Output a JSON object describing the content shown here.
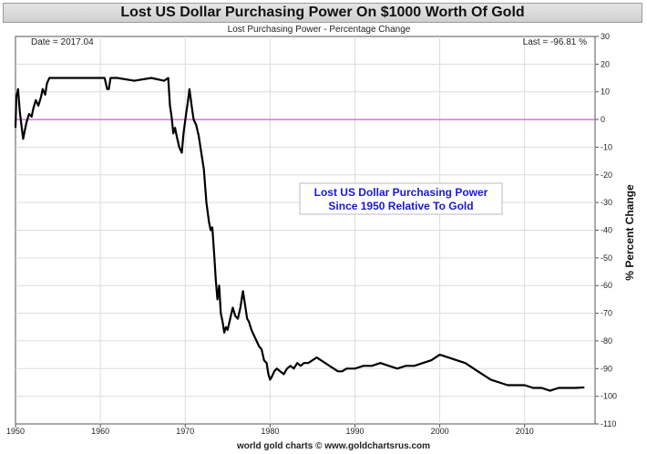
{
  "chart_data": {
    "type": "line",
    "title": "Lost US Dollar Purchasing Power On $1000 Worth Of Gold",
    "subtitle": "Lost Purchasing Power - Percentage Change",
    "date_label": "Date = 2017.04",
    "last_label": "Last = -96.81  %",
    "ylabel": "% Percent Change",
    "annotation": [
      "Lost US Dollar Purchasing Power",
      "Since 1950 Relative To Gold"
    ],
    "footer": "world gold charts © www.goldchartsrus.com",
    "xlim": [
      1950,
      2018.3
    ],
    "ylim": [
      -110,
      30
    ],
    "x_ticks": [
      1950,
      1960,
      1970,
      1980,
      1990,
      2000,
      2010
    ],
    "y_ticks": [
      30,
      20,
      10,
      0,
      -10,
      -20,
      -30,
      -40,
      -50,
      -60,
      -70,
      -80,
      -90,
      -100,
      -110
    ],
    "grid": true,
    "zero_line_color": "#cc33cc",
    "line_color": "#000000",
    "series": [
      {
        "x": [
          1950.0,
          1950.1,
          1950.3,
          1950.5,
          1950.7,
          1950.9,
          1951.1,
          1951.3,
          1951.6,
          1951.9,
          1952.1,
          1952.4,
          1952.7,
          1953.0,
          1953.2,
          1953.5,
          1953.7,
          1954.0,
          1954.5,
          1955.5,
          1957.0,
          1959.0,
          1960.5,
          1960.8,
          1961.0,
          1961.2,
          1962.0,
          1964.0,
          1966.0,
          1967.5,
          1968.0,
          1968.2,
          1968.4,
          1968.6,
          1968.8,
          1969.0,
          1969.3,
          1969.6,
          1969.8,
          1970.1,
          1970.3,
          1970.5,
          1970.8,
          1971.0,
          1971.3,
          1971.6,
          1971.9,
          1972.2,
          1972.5,
          1972.8,
          1973.0,
          1973.2,
          1973.4,
          1973.6,
          1973.8,
          1974.0,
          1974.2,
          1974.4,
          1974.6,
          1974.8,
          1975.0,
          1975.3,
          1975.6,
          1975.9,
          1976.2,
          1976.5,
          1976.8,
          1977.1,
          1977.3,
          1977.5,
          1977.8,
          1978.1,
          1978.4,
          1978.7,
          1979.0,
          1979.3,
          1979.6,
          1979.8,
          1980.0,
          1980.2,
          1980.5,
          1980.8,
          1981.2,
          1981.6,
          1982.0,
          1982.4,
          1982.8,
          1983.2,
          1983.6,
          1984.0,
          1984.5,
          1985.0,
          1985.5,
          1986.0,
          1986.5,
          1987.0,
          1987.5,
          1988.0,
          1988.5,
          1989.0,
          1990.0,
          1991.0,
          1992.0,
          1993.0,
          1994.0,
          1995.0,
          1996.0,
          1997.0,
          1998.0,
          1999.0,
          2000.0,
          2001.0,
          2002.0,
          2003.0,
          2004.0,
          2005.0,
          2006.0,
          2007.0,
          2008.0,
          2009.0,
          2010.0,
          2011.0,
          2012.0,
          2013.0,
          2014.0,
          2015.0,
          2016.0,
          2017.04
        ],
        "y": [
          -3,
          8,
          11,
          3,
          -2,
          -7,
          -4,
          -1,
          2,
          1,
          4,
          7,
          5,
          8,
          11,
          9,
          13,
          15,
          15,
          15,
          15,
          15,
          15,
          11,
          11,
          15,
          15,
          14,
          15,
          14,
          15,
          5,
          1,
          -5,
          -3,
          -6,
          -10,
          -12,
          -5,
          2,
          6,
          11,
          4,
          0,
          -2,
          -6,
          -12,
          -18,
          -30,
          -37,
          -40,
          -39,
          -48,
          -58,
          -65,
          -60,
          -70,
          -73,
          -77,
          -75,
          -76,
          -72,
          -68,
          -71,
          -72,
          -68,
          -62,
          -68,
          -72,
          -73,
          -76,
          -78,
          -80,
          -82,
          -83,
          -87,
          -88,
          -92,
          -94,
          -93,
          -91,
          -90,
          -91,
          -92,
          -90,
          -89,
          -90,
          -88,
          -89,
          -88,
          -88,
          -87,
          -86,
          -87,
          -88,
          -89,
          -90,
          -91,
          -91,
          -90,
          -90,
          -89,
          -89,
          -88,
          -89,
          -90,
          -89,
          -89,
          -88,
          -87,
          -85,
          -86,
          -87,
          -88,
          -90,
          -92,
          -94,
          -95,
          -96,
          -96,
          -96,
          -97,
          -97,
          -98,
          -97,
          -97,
          -97,
          -96.81
        ]
      }
    ]
  }
}
